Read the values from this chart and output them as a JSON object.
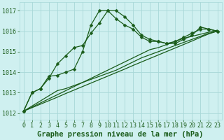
{
  "title": "Graphe pression niveau de la mer (hPa)",
  "background_color": "#cff0f0",
  "grid_color": "#a8d8d8",
  "line_color": "#1a5c1a",
  "marker_color": "#1a5c1a",
  "xlim": [
    -0.5,
    23.5
  ],
  "ylim": [
    1011.7,
    1017.4
  ],
  "yticks": [
    1012,
    1013,
    1014,
    1015,
    1016,
    1017
  ],
  "xticks": [
    0,
    1,
    2,
    3,
    4,
    5,
    6,
    7,
    8,
    9,
    10,
    11,
    12,
    13,
    14,
    15,
    16,
    17,
    18,
    19,
    20,
    21,
    22,
    23
  ],
  "series_with_markers": [
    [
      1012.1,
      1013.0,
      1013.2,
      1013.7,
      1014.4,
      1014.8,
      1015.2,
      1015.3,
      1015.9,
      1016.4,
      1017.0,
      1017.0,
      1016.7,
      1016.3,
      1015.8,
      1015.6,
      1015.5,
      1015.4,
      1015.4,
      1015.6,
      1015.8,
      1016.2,
      1016.1,
      1016.0
    ],
    [
      1012.1,
      1013.0,
      1013.2,
      1013.8,
      1013.85,
      1014.0,
      1014.15,
      1015.0,
      1016.3,
      1017.0,
      1017.0,
      1016.6,
      1016.3,
      1016.1,
      1015.7,
      1015.5,
      1015.5,
      1015.4,
      1015.5,
      1015.7,
      1015.9,
      1016.1,
      1016.1,
      1016.0
    ]
  ],
  "series_linear": [
    [
      1012.1,
      1012.27,
      1012.44,
      1012.61,
      1012.78,
      1012.96,
      1013.13,
      1013.3,
      1013.47,
      1013.64,
      1013.81,
      1013.98,
      1014.15,
      1014.33,
      1014.5,
      1014.67,
      1014.84,
      1015.01,
      1015.18,
      1015.35,
      1015.52,
      1015.7,
      1015.87,
      1016.0
    ],
    [
      1012.1,
      1012.3,
      1012.5,
      1012.7,
      1012.9,
      1013.1,
      1013.3,
      1013.5,
      1013.7,
      1013.9,
      1014.1,
      1014.3,
      1014.5,
      1014.7,
      1014.9,
      1015.1,
      1015.2,
      1015.35,
      1015.5,
      1015.65,
      1015.75,
      1015.85,
      1015.95,
      1016.05
    ],
    [
      1012.1,
      1012.35,
      1012.6,
      1012.85,
      1013.1,
      1013.2,
      1013.35,
      1013.5,
      1013.65,
      1013.8,
      1013.95,
      1014.1,
      1014.3,
      1014.5,
      1014.7,
      1014.85,
      1015.0,
      1015.15,
      1015.3,
      1015.45,
      1015.6,
      1015.75,
      1015.9,
      1016.0
    ]
  ],
  "marker_size": 2.5,
  "linewidth": 0.9,
  "title_fontsize": 7.5,
  "tick_fontsize": 6
}
